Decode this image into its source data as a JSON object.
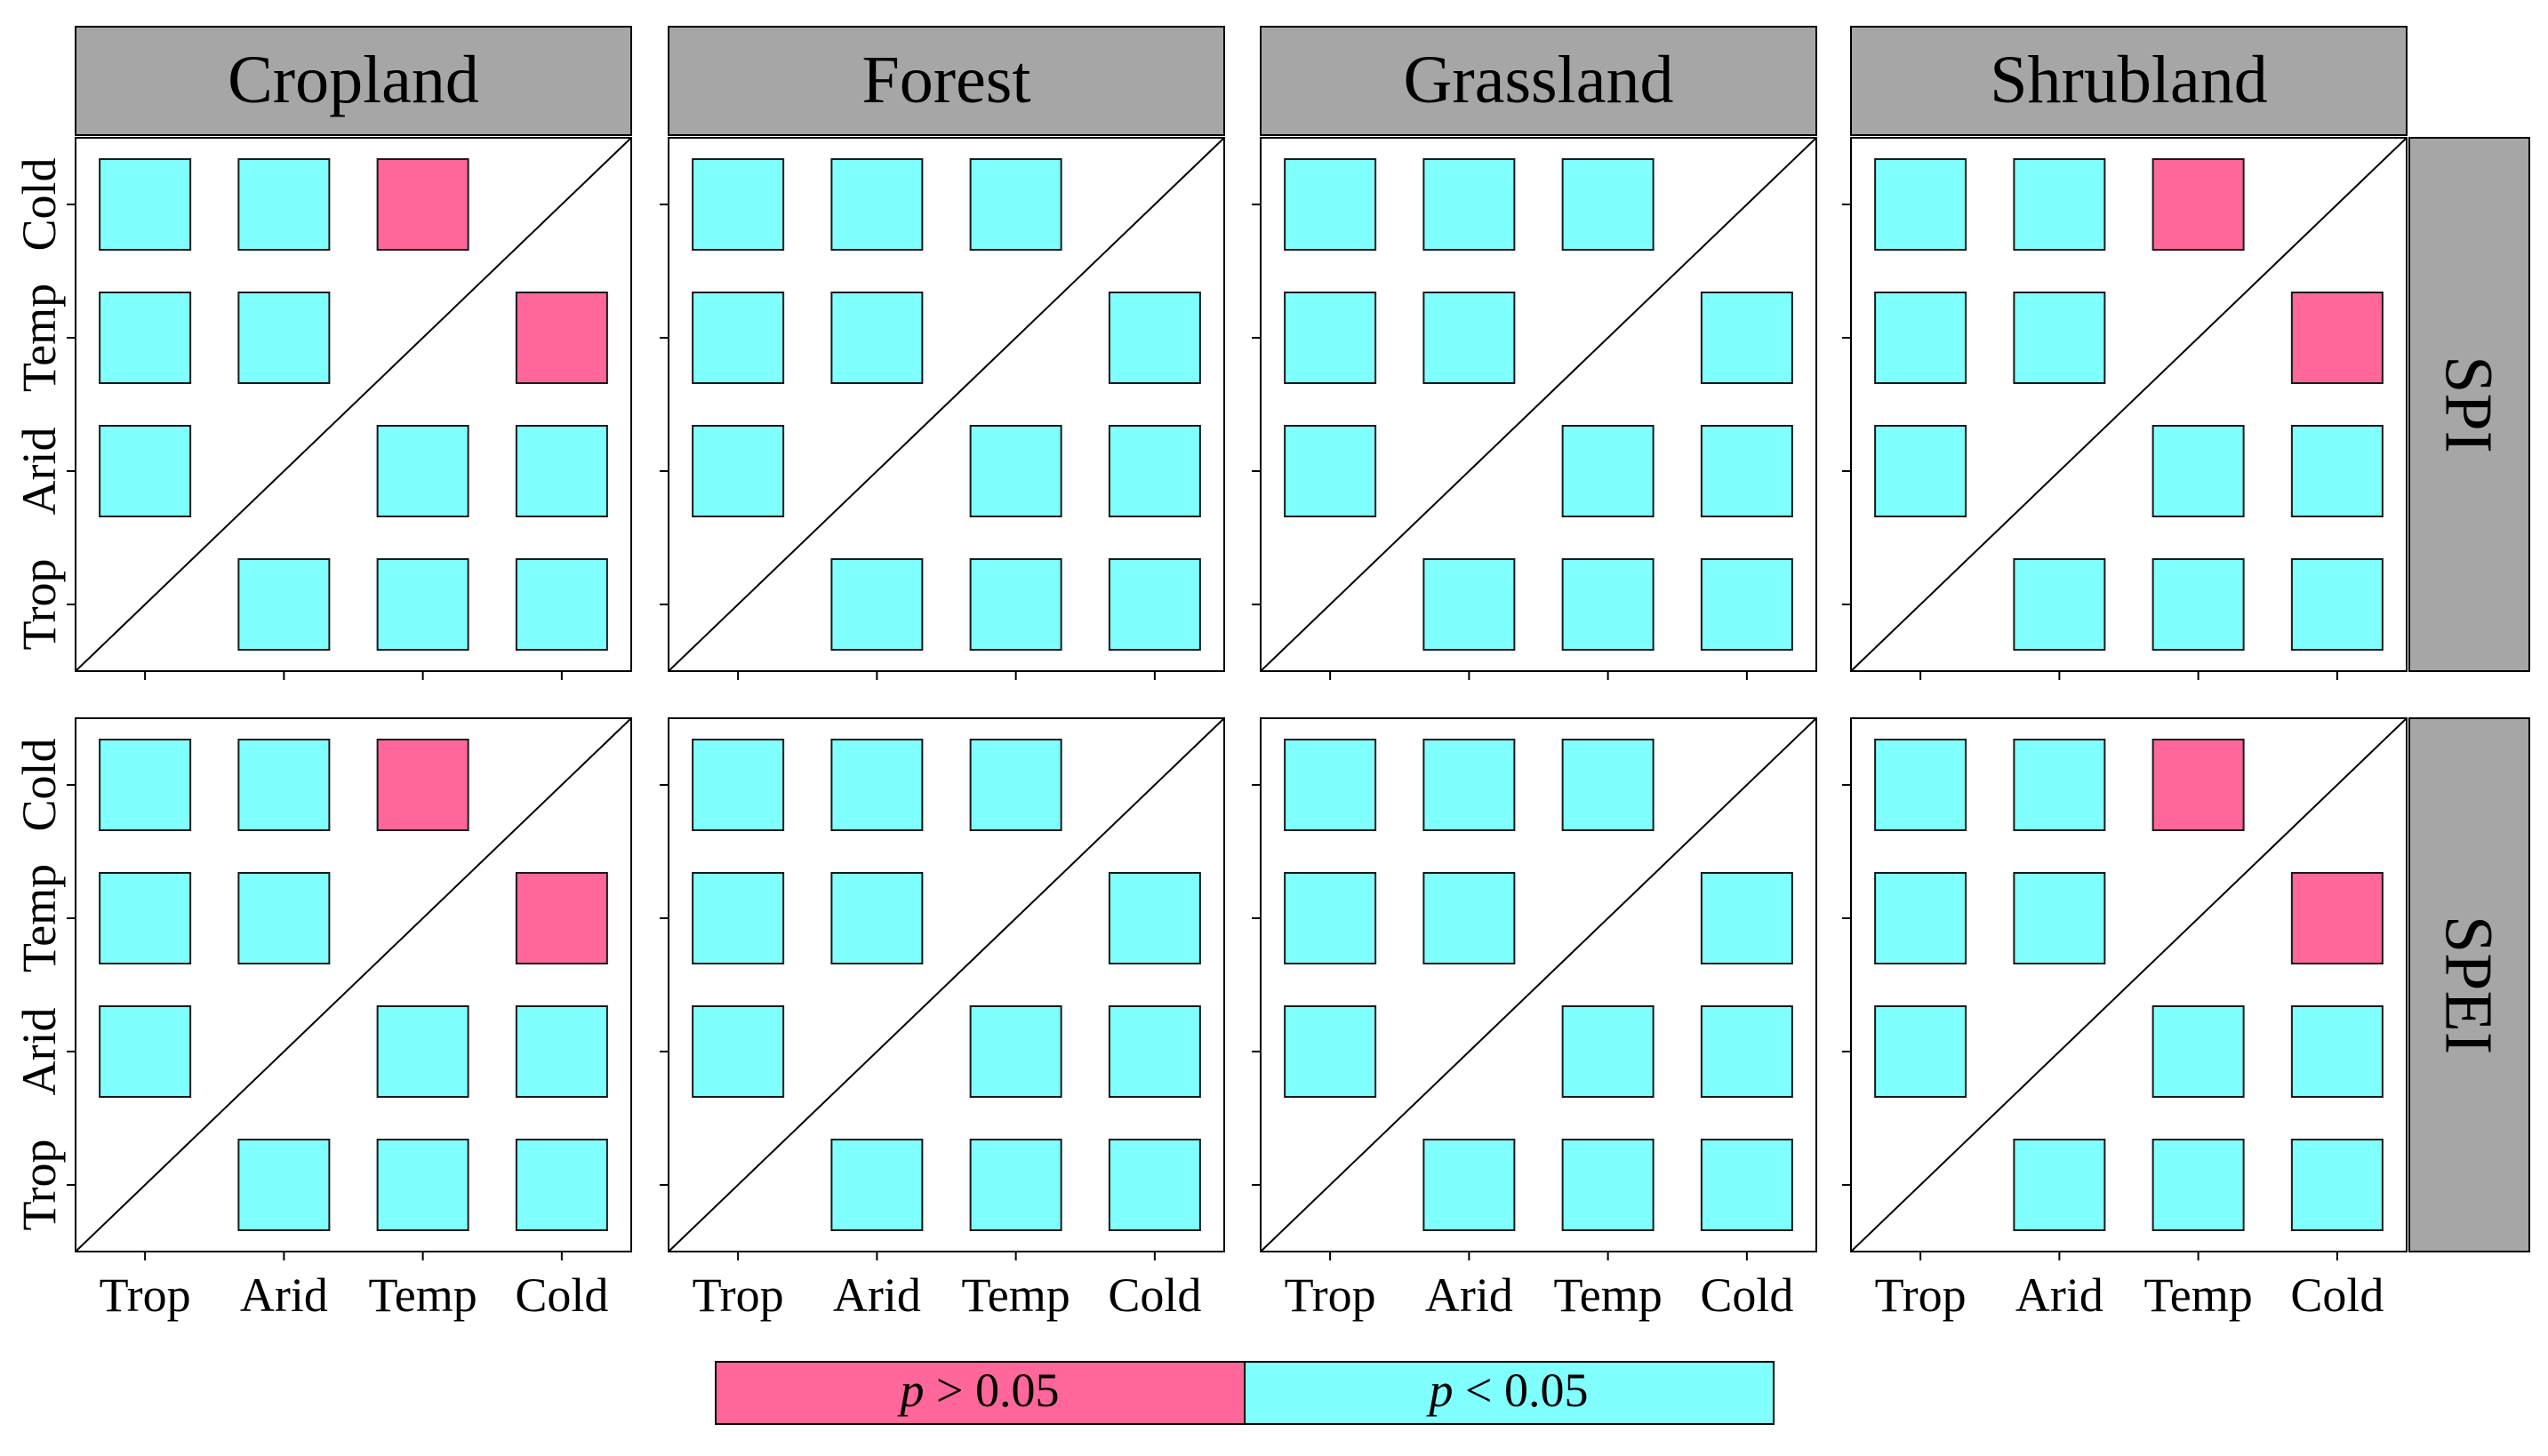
{
  "chart_data": {
    "type": "heatmap",
    "columns": [
      "Cropland",
      "Forest",
      "Grassland",
      "Shrubland"
    ],
    "rows": [
      "SPI",
      "SPEI"
    ],
    "x_categories": [
      "Trop",
      "Arid",
      "Temp",
      "Cold"
    ],
    "y_categories": [
      "Trop",
      "Arid",
      "Temp",
      "Cold"
    ],
    "legend": {
      "red_label": "p > 0.05",
      "cyan_label": "p < 0.05",
      "red_prefix": "p",
      "red_suffix": " > 0.05",
      "cyan_prefix": "p",
      "cyan_suffix": " < 0.05"
    },
    "colors": {
      "significant": "#80ffff",
      "not_significant": "#ff6699",
      "strip": "#a6a6a6"
    },
    "panels": [
      {
        "land": "Cropland",
        "index": "SPI",
        "cells": [
          {
            "x": "Trop",
            "y": "Cold",
            "sig": true
          },
          {
            "x": "Arid",
            "y": "Cold",
            "sig": true
          },
          {
            "x": "Temp",
            "y": "Cold",
            "sig": false
          },
          {
            "x": "Trop",
            "y": "Temp",
            "sig": true
          },
          {
            "x": "Arid",
            "y": "Temp",
            "sig": true
          },
          {
            "x": "Cold",
            "y": "Temp",
            "sig": false
          },
          {
            "x": "Trop",
            "y": "Arid",
            "sig": true
          },
          {
            "x": "Temp",
            "y": "Arid",
            "sig": true
          },
          {
            "x": "Cold",
            "y": "Arid",
            "sig": true
          },
          {
            "x": "Arid",
            "y": "Trop",
            "sig": true
          },
          {
            "x": "Temp",
            "y": "Trop",
            "sig": true
          },
          {
            "x": "Cold",
            "y": "Trop",
            "sig": true
          }
        ]
      },
      {
        "land": "Forest",
        "index": "SPI",
        "cells": [
          {
            "x": "Trop",
            "y": "Cold",
            "sig": true
          },
          {
            "x": "Arid",
            "y": "Cold",
            "sig": true
          },
          {
            "x": "Temp",
            "y": "Cold",
            "sig": true
          },
          {
            "x": "Trop",
            "y": "Temp",
            "sig": true
          },
          {
            "x": "Arid",
            "y": "Temp",
            "sig": true
          },
          {
            "x": "Cold",
            "y": "Temp",
            "sig": true
          },
          {
            "x": "Trop",
            "y": "Arid",
            "sig": true
          },
          {
            "x": "Temp",
            "y": "Arid",
            "sig": true
          },
          {
            "x": "Cold",
            "y": "Arid",
            "sig": true
          },
          {
            "x": "Arid",
            "y": "Trop",
            "sig": true
          },
          {
            "x": "Temp",
            "y": "Trop",
            "sig": true
          },
          {
            "x": "Cold",
            "y": "Trop",
            "sig": true
          }
        ]
      },
      {
        "land": "Grassland",
        "index": "SPI",
        "cells": [
          {
            "x": "Trop",
            "y": "Cold",
            "sig": true
          },
          {
            "x": "Arid",
            "y": "Cold",
            "sig": true
          },
          {
            "x": "Temp",
            "y": "Cold",
            "sig": true
          },
          {
            "x": "Trop",
            "y": "Temp",
            "sig": true
          },
          {
            "x": "Arid",
            "y": "Temp",
            "sig": true
          },
          {
            "x": "Cold",
            "y": "Temp",
            "sig": true
          },
          {
            "x": "Trop",
            "y": "Arid",
            "sig": true
          },
          {
            "x": "Temp",
            "y": "Arid",
            "sig": true
          },
          {
            "x": "Cold",
            "y": "Arid",
            "sig": true
          },
          {
            "x": "Arid",
            "y": "Trop",
            "sig": true
          },
          {
            "x": "Temp",
            "y": "Trop",
            "sig": true
          },
          {
            "x": "Cold",
            "y": "Trop",
            "sig": true
          }
        ]
      },
      {
        "land": "Shrubland",
        "index": "SPI",
        "cells": [
          {
            "x": "Trop",
            "y": "Cold",
            "sig": true
          },
          {
            "x": "Arid",
            "y": "Cold",
            "sig": true
          },
          {
            "x": "Temp",
            "y": "Cold",
            "sig": false
          },
          {
            "x": "Trop",
            "y": "Temp",
            "sig": true
          },
          {
            "x": "Arid",
            "y": "Temp",
            "sig": true
          },
          {
            "x": "Cold",
            "y": "Temp",
            "sig": false
          },
          {
            "x": "Trop",
            "y": "Arid",
            "sig": true
          },
          {
            "x": "Temp",
            "y": "Arid",
            "sig": true
          },
          {
            "x": "Cold",
            "y": "Arid",
            "sig": true
          },
          {
            "x": "Arid",
            "y": "Trop",
            "sig": true
          },
          {
            "x": "Temp",
            "y": "Trop",
            "sig": true
          },
          {
            "x": "Cold",
            "y": "Trop",
            "sig": true
          }
        ]
      },
      {
        "land": "Cropland",
        "index": "SPEI",
        "cells": [
          {
            "x": "Trop",
            "y": "Cold",
            "sig": true
          },
          {
            "x": "Arid",
            "y": "Cold",
            "sig": true
          },
          {
            "x": "Temp",
            "y": "Cold",
            "sig": false
          },
          {
            "x": "Trop",
            "y": "Temp",
            "sig": true
          },
          {
            "x": "Arid",
            "y": "Temp",
            "sig": true
          },
          {
            "x": "Cold",
            "y": "Temp",
            "sig": false
          },
          {
            "x": "Trop",
            "y": "Arid",
            "sig": true
          },
          {
            "x": "Temp",
            "y": "Arid",
            "sig": true
          },
          {
            "x": "Cold",
            "y": "Arid",
            "sig": true
          },
          {
            "x": "Arid",
            "y": "Trop",
            "sig": true
          },
          {
            "x": "Temp",
            "y": "Trop",
            "sig": true
          },
          {
            "x": "Cold",
            "y": "Trop",
            "sig": true
          }
        ]
      },
      {
        "land": "Forest",
        "index": "SPEI",
        "cells": [
          {
            "x": "Trop",
            "y": "Cold",
            "sig": true
          },
          {
            "x": "Arid",
            "y": "Cold",
            "sig": true
          },
          {
            "x": "Temp",
            "y": "Cold",
            "sig": true
          },
          {
            "x": "Trop",
            "y": "Temp",
            "sig": true
          },
          {
            "x": "Arid",
            "y": "Temp",
            "sig": true
          },
          {
            "x": "Cold",
            "y": "Temp",
            "sig": true
          },
          {
            "x": "Trop",
            "y": "Arid",
            "sig": true
          },
          {
            "x": "Temp",
            "y": "Arid",
            "sig": true
          },
          {
            "x": "Cold",
            "y": "Arid",
            "sig": true
          },
          {
            "x": "Arid",
            "y": "Trop",
            "sig": true
          },
          {
            "x": "Temp",
            "y": "Trop",
            "sig": true
          },
          {
            "x": "Cold",
            "y": "Trop",
            "sig": true
          }
        ]
      },
      {
        "land": "Grassland",
        "index": "SPEI",
        "cells": [
          {
            "x": "Trop",
            "y": "Cold",
            "sig": true
          },
          {
            "x": "Arid",
            "y": "Cold",
            "sig": true
          },
          {
            "x": "Temp",
            "y": "Cold",
            "sig": true
          },
          {
            "x": "Trop",
            "y": "Temp",
            "sig": true
          },
          {
            "x": "Arid",
            "y": "Temp",
            "sig": true
          },
          {
            "x": "Cold",
            "y": "Temp",
            "sig": true
          },
          {
            "x": "Trop",
            "y": "Arid",
            "sig": true
          },
          {
            "x": "Temp",
            "y": "Arid",
            "sig": true
          },
          {
            "x": "Cold",
            "y": "Arid",
            "sig": true
          },
          {
            "x": "Arid",
            "y": "Trop",
            "sig": true
          },
          {
            "x": "Temp",
            "y": "Trop",
            "sig": true
          },
          {
            "x": "Cold",
            "y": "Trop",
            "sig": true
          }
        ]
      },
      {
        "land": "Shrubland",
        "index": "SPEI",
        "cells": [
          {
            "x": "Trop",
            "y": "Cold",
            "sig": true
          },
          {
            "x": "Arid",
            "y": "Cold",
            "sig": true
          },
          {
            "x": "Temp",
            "y": "Cold",
            "sig": false
          },
          {
            "x": "Trop",
            "y": "Temp",
            "sig": true
          },
          {
            "x": "Arid",
            "y": "Temp",
            "sig": true
          },
          {
            "x": "Cold",
            "y": "Temp",
            "sig": false
          },
          {
            "x": "Trop",
            "y": "Arid",
            "sig": true
          },
          {
            "x": "Temp",
            "y": "Arid",
            "sig": true
          },
          {
            "x": "Cold",
            "y": "Arid",
            "sig": true
          },
          {
            "x": "Arid",
            "y": "Trop",
            "sig": true
          },
          {
            "x": "Temp",
            "y": "Trop",
            "sig": true
          },
          {
            "x": "Cold",
            "y": "Trop",
            "sig": true
          }
        ]
      }
    ]
  }
}
